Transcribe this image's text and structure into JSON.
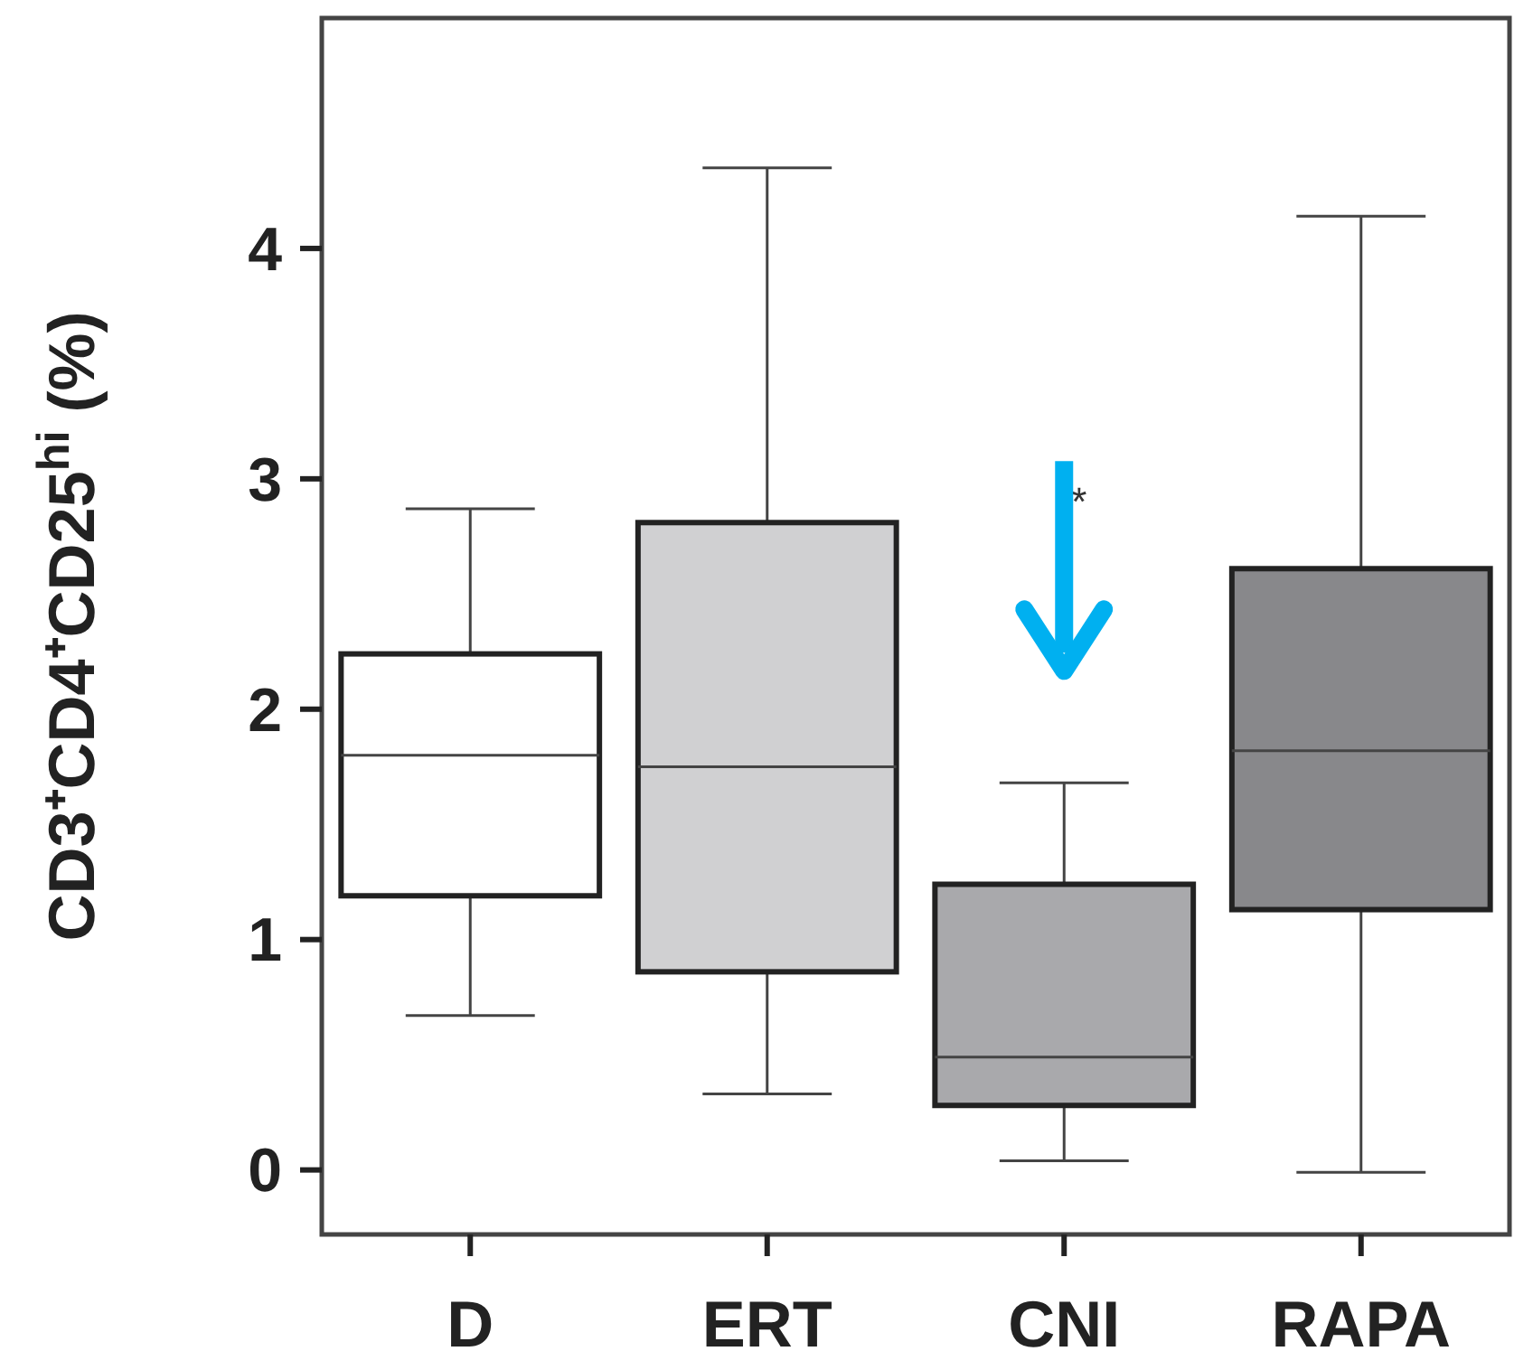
{
  "chart_data": {
    "type": "box",
    "ylabel": "CD3⁺CD4⁺CD25$^{hi}$ (%)",
    "categories": [
      "D",
      "ERT",
      "CNI",
      "RAPA"
    ],
    "colors": [
      "#ffffff",
      "#d0d0d2",
      "#a9a9ac",
      "#88888b"
    ],
    "boxes": [
      {
        "low": 0.67,
        "q1": 1.19,
        "median": 1.8,
        "q3": 2.24,
        "high": 2.87
      },
      {
        "low": 0.33,
        "q1": 0.86,
        "median": 1.75,
        "q3": 2.81,
        "high": 4.35
      },
      {
        "low": 0.04,
        "q1": 0.28,
        "median": 0.49,
        "q3": 1.24,
        "high": 1.68
      },
      {
        "low": -0.01,
        "q1": 1.13,
        "median": 1.82,
        "q3": 2.61,
        "high": 4.14
      }
    ],
    "ylim": [
      -0.28,
      5.0
    ],
    "yticks": [
      0,
      1,
      2,
      3,
      4
    ],
    "grid": false,
    "annotations": [
      "*"
    ]
  }
}
